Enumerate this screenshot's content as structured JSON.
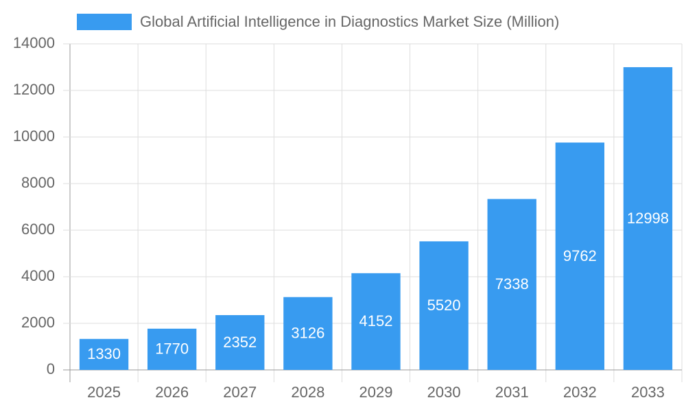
{
  "chart_data": {
    "type": "bar",
    "categories": [
      "2025",
      "2026",
      "2027",
      "2028",
      "2029",
      "2030",
      "2031",
      "2032",
      "2033"
    ],
    "series": [
      {
        "name": "Global Artificial Intelligence in Diagnostics Market Size (Million)",
        "color": "#389bf0",
        "values": [
          1330,
          1770,
          2352,
          3126,
          4152,
          5520,
          7338,
          9762,
          12998
        ]
      }
    ],
    "ylim": [
      0,
      14000
    ],
    "yticks": [
      0,
      2000,
      4000,
      6000,
      8000,
      10000,
      12000,
      14000
    ],
    "grid": true,
    "legend": "top",
    "data_labels": true
  }
}
